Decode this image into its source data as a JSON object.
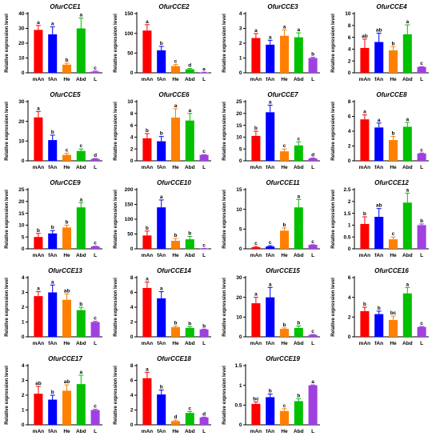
{
  "ylabel": "Relative expression level",
  "categories": [
    "mAn",
    "fAn",
    "He",
    "Abd",
    "L"
  ],
  "colors": [
    "#ff0000",
    "#0000ff",
    "#ff8000",
    "#00c000",
    "#a040e0"
  ],
  "chart_data": [
    {
      "type": "bar",
      "title": "OfurCCE1",
      "categories": [
        "mAn",
        "fAn",
        "He",
        "Abd",
        "L"
      ],
      "values": [
        29,
        26,
        5.5,
        30,
        0.8
      ],
      "errors": [
        3,
        5,
        1,
        7,
        0.4
      ],
      "letters": [
        "a",
        "a",
        "b",
        "a",
        "c"
      ],
      "ylim": [
        0,
        40
      ],
      "ticks": [
        0,
        10,
        20,
        30,
        40
      ]
    },
    {
      "type": "bar",
      "title": "OfurCCE2",
      "categories": [
        "mAn",
        "fAn",
        "He",
        "Abd",
        "L"
      ],
      "values": [
        107,
        57,
        17,
        9,
        1
      ],
      "errors": [
        15,
        10,
        4,
        2,
        0.5
      ],
      "letters": [
        "a",
        "b",
        "c",
        "d",
        "e"
      ],
      "ylim": [
        0,
        150
      ],
      "ticks": [
        0,
        50,
        100,
        150
      ]
    },
    {
      "type": "bar",
      "title": "OfurCCE3",
      "categories": [
        "mAn",
        "fAn",
        "He",
        "Abd",
        "L"
      ],
      "values": [
        2.35,
        1.9,
        2.5,
        2.4,
        1.0
      ],
      "errors": [
        0.3,
        0.3,
        0.4,
        0.3,
        0.05
      ],
      "letters": [
        "a",
        "a",
        "a",
        "a",
        "b"
      ],
      "ylim": [
        0,
        4
      ],
      "ticks": [
        0,
        1,
        2,
        3,
        4
      ]
    },
    {
      "type": "bar",
      "title": "OfurCCE4",
      "categories": [
        "mAn",
        "fAn",
        "He",
        "Abd",
        "L"
      ],
      "values": [
        4.2,
        5.2,
        3.8,
        6.5,
        1.0
      ],
      "errors": [
        1.5,
        1.5,
        0.6,
        1.6,
        0.05
      ],
      "letters": [
        "ab",
        "ab",
        "b",
        "a",
        "c"
      ],
      "ylim": [
        0,
        10
      ],
      "ticks": [
        0,
        2,
        4,
        6,
        8,
        10
      ]
    },
    {
      "type": "bar",
      "title": "OfurCCE5",
      "categories": [
        "mAn",
        "fAn",
        "He",
        "Abd",
        "L"
      ],
      "values": [
        22,
        10.5,
        3,
        5,
        1
      ],
      "errors": [
        3,
        2.5,
        0.8,
        1,
        0.2
      ],
      "letters": [
        "a",
        "b",
        "c",
        "c",
        "d"
      ],
      "ylim": [
        0,
        30
      ],
      "ticks": [
        0,
        10,
        20,
        30
      ]
    },
    {
      "type": "bar",
      "title": "OfurCCE6",
      "categories": [
        "mAn",
        "fAn",
        "He",
        "Abd",
        "L"
      ],
      "values": [
        3.8,
        3.3,
        7.3,
        6.8,
        1
      ],
      "errors": [
        0.8,
        0.8,
        1.5,
        1.2,
        0.05
      ],
      "letters": [
        "b",
        "b",
        "a",
        "a",
        "c"
      ],
      "ylim": [
        0,
        10
      ],
      "ticks": [
        0,
        2,
        4,
        6,
        8,
        10
      ]
    },
    {
      "type": "bar",
      "title": "OfurCCE7",
      "categories": [
        "mAn",
        "fAn",
        "He",
        "Abd",
        "L"
      ],
      "values": [
        10.5,
        20.5,
        4,
        6.5,
        1
      ],
      "errors": [
        2,
        3,
        1,
        1.5,
        0.2
      ],
      "letters": [
        "b",
        "a",
        "c",
        "c",
        "d"
      ],
      "ylim": [
        0,
        25
      ],
      "ticks": [
        0,
        5,
        10,
        15,
        20,
        25
      ]
    },
    {
      "type": "bar",
      "title": "OfurCCE8",
      "categories": [
        "mAn",
        "fAn",
        "He",
        "Abd",
        "L"
      ],
      "values": [
        5.6,
        4.5,
        2.8,
        4.6,
        1
      ],
      "errors": [
        0.6,
        0.6,
        0.5,
        0.6,
        0.05
      ],
      "letters": [
        "a",
        "a",
        "b",
        "a",
        "c"
      ],
      "ylim": [
        0,
        8
      ],
      "ticks": [
        0,
        2,
        4,
        6,
        8
      ]
    },
    {
      "type": "bar",
      "title": "OfurCCE9",
      "categories": [
        "mAn",
        "fAn",
        "He",
        "Abd",
        "L"
      ],
      "values": [
        5,
        6.5,
        9,
        17.5,
        1
      ],
      "errors": [
        1.5,
        1.2,
        1,
        2,
        0.1
      ],
      "letters": [
        "b",
        "b",
        "b",
        "a",
        "c"
      ],
      "ylim": [
        0,
        25
      ],
      "ticks": [
        0,
        5,
        10,
        15,
        20,
        25
      ]
    },
    {
      "type": "bar",
      "title": "OfurCCE10",
      "categories": [
        "mAn",
        "fAn",
        "He",
        "Abd",
        "L"
      ],
      "values": [
        45,
        140,
        27,
        32,
        1
      ],
      "errors": [
        15,
        25,
        8,
        10,
        0.5
      ],
      "letters": [
        "b",
        "a",
        "b",
        "b",
        "c"
      ],
      "ylim": [
        0,
        200
      ],
      "ticks": [
        0,
        50,
        100,
        150,
        200
      ]
    },
    {
      "type": "bar",
      "title": "OfurCCE11",
      "categories": [
        "mAn",
        "fAn",
        "He",
        "Abd",
        "L"
      ],
      "values": [
        0.4,
        0.6,
        4.6,
        10.5,
        1
      ],
      "errors": [
        0.2,
        0.2,
        0.7,
        2,
        0.05
      ],
      "letters": [
        "c",
        "c",
        "b",
        "a",
        "c"
      ],
      "ylim": [
        0,
        15
      ],
      "ticks": [
        0,
        5,
        10,
        15
      ]
    },
    {
      "type": "bar",
      "title": "OfurCCE12",
      "categories": [
        "mAn",
        "fAn",
        "He",
        "Abd",
        "L"
      ],
      "values": [
        1.05,
        1.35,
        0.4,
        1.95,
        1.0
      ],
      "errors": [
        0.3,
        0.35,
        0.1,
        0.4,
        0.05
      ],
      "letters": [
        "b",
        "ab",
        "c",
        "a",
        "b"
      ],
      "ylim": [
        0,
        2.5
      ],
      "ticks": [
        0,
        0.5,
        1.0,
        1.5,
        2.0,
        2.5
      ]
    },
    {
      "type": "bar",
      "title": "OfurCCE13",
      "categories": [
        "mAn",
        "fAn",
        "He",
        "Abd",
        "L"
      ],
      "values": [
        2.75,
        3.0,
        2.5,
        1.8,
        1.0
      ],
      "errors": [
        0.3,
        0.5,
        0.4,
        0.2,
        0.05
      ],
      "letters": [
        "a",
        "a",
        "ab",
        "b",
        "c"
      ],
      "ylim": [
        0,
        4
      ],
      "ticks": [
        0,
        1,
        2,
        3,
        4
      ]
    },
    {
      "type": "bar",
      "title": "OfurCCE14",
      "categories": [
        "mAn",
        "fAn",
        "He",
        "Abd",
        "L"
      ],
      "values": [
        6.6,
        5.2,
        1.3,
        1.2,
        1.0
      ],
      "errors": [
        0.8,
        0.9,
        0.15,
        0.15,
        0.05
      ],
      "letters": [
        "a",
        "a",
        "b",
        "b",
        "b"
      ],
      "ylim": [
        0,
        8
      ],
      "ticks": [
        0,
        2,
        4,
        6,
        8
      ]
    },
    {
      "type": "bar",
      "title": "OfurCCE15",
      "categories": [
        "mAn",
        "fAn",
        "He",
        "Abd",
        "L"
      ],
      "values": [
        17,
        20,
        4,
        4.5,
        1
      ],
      "errors": [
        3,
        5,
        0.5,
        1,
        0.2
      ],
      "letters": [
        "a",
        "a",
        "b",
        "b",
        "c"
      ],
      "ylim": [
        0,
        30
      ],
      "ticks": [
        0,
        10,
        20,
        30
      ]
    },
    {
      "type": "bar",
      "title": "OfurCCE16",
      "categories": [
        "mAn",
        "fAn",
        "He",
        "Abd",
        "L"
      ],
      "values": [
        2.6,
        2.3,
        1.7,
        4.4,
        1.0
      ],
      "errors": [
        0.4,
        0.3,
        0.4,
        0.6,
        0.05
      ],
      "letters": [
        "b",
        "b",
        "bc",
        "a",
        "c"
      ],
      "ylim": [
        0,
        6
      ],
      "ticks": [
        0,
        2,
        4,
        6
      ]
    },
    {
      "type": "bar",
      "title": "OfurCCE17",
      "categories": [
        "mAn",
        "fAn",
        "He",
        "Abd",
        "L"
      ],
      "values": [
        2.1,
        1.7,
        2.3,
        2.75,
        1.0
      ],
      "errors": [
        0.5,
        0.3,
        0.4,
        0.6,
        0.05
      ],
      "letters": [
        "ab",
        "b",
        "ab",
        "a",
        "c"
      ],
      "ylim": [
        0,
        4
      ],
      "ticks": [
        0,
        1,
        2,
        3,
        4
      ]
    },
    {
      "type": "bar",
      "title": "OfurCCE18",
      "categories": [
        "mAn",
        "fAn",
        "He",
        "Abd",
        "L"
      ],
      "values": [
        6.3,
        4.1,
        0.5,
        1.6,
        1.0
      ],
      "errors": [
        0.8,
        0.6,
        0.15,
        0.2,
        0.05
      ],
      "letters": [
        "a",
        "b",
        "d",
        "c",
        "d"
      ],
      "ylim": [
        0,
        8
      ],
      "ticks": [
        0,
        2,
        4,
        6,
        8
      ]
    },
    {
      "type": "bar",
      "title": "OfurCCE19",
      "categories": [
        "mAn",
        "fAn",
        "He",
        "Abd",
        "L"
      ],
      "values": [
        0.53,
        0.7,
        0.35,
        0.6,
        1.0
      ],
      "errors": [
        0.05,
        0.08,
        0.06,
        0.06,
        0.01
      ],
      "letters": [
        "bc",
        "b",
        "c",
        "b",
        "a"
      ],
      "ylim": [
        0,
        1.5
      ],
      "ticks": [
        0,
        0.5,
        1.0,
        1.5
      ]
    }
  ]
}
